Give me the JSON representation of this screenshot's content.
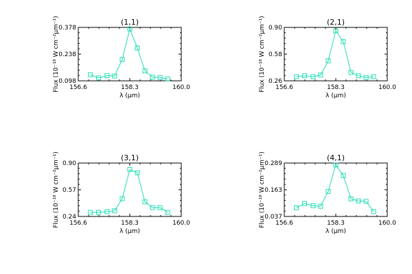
{
  "chart_data": [
    {
      "type": "line",
      "title": "(1,1)",
      "xlabel": "λ (μm)",
      "ylabel": "Flux (10⁻¹⁸ W cm⁻²μm⁻¹)",
      "xlim": [
        156.6,
        160.0
      ],
      "ylim": [
        0.098,
        0.378
      ],
      "xticks": [
        "156.6",
        "158.3",
        "160.0"
      ],
      "yticks": [
        "0.098",
        "0.238",
        "0.378"
      ],
      "x": [
        157.0,
        157.27,
        157.55,
        157.8,
        158.05,
        158.3,
        158.55,
        158.8,
        159.05,
        159.3,
        159.55
      ],
      "y": [
        0.13,
        0.113,
        0.125,
        0.123,
        0.21,
        0.37,
        0.27,
        0.15,
        0.117,
        0.115,
        0.108
      ],
      "color": "#1fdcb4"
    },
    {
      "type": "line",
      "title": "(2,1)",
      "xlabel": "λ (μm)",
      "ylabel": "Flux (10⁻¹⁸ W cm⁻²μm⁻¹)",
      "xlim": [
        156.6,
        160.0
      ],
      "ylim": [
        0.26,
        0.9
      ],
      "xticks": [
        "156.6",
        "158.3",
        "160.0"
      ],
      "yticks": [
        "0.26",
        "0.58",
        "0.90"
      ],
      "x": [
        157.0,
        157.27,
        157.55,
        157.8,
        158.05,
        158.3,
        158.55,
        158.8,
        159.05,
        159.3,
        159.55
      ],
      "y": [
        0.31,
        0.32,
        0.31,
        0.33,
        0.5,
        0.86,
        0.73,
        0.36,
        0.32,
        0.3,
        0.31
      ],
      "color": "#1fdcb4"
    },
    {
      "type": "line",
      "title": "(3,1)",
      "xlabel": "λ (μm)",
      "ylabel": "Flux (10⁻¹⁸ W cm⁻²μm⁻¹)",
      "xlim": [
        156.6,
        160.0
      ],
      "ylim": [
        0.24,
        0.9
      ],
      "xticks": [
        "156.6",
        "158.3",
        "160.0"
      ],
      "yticks": [
        "0.24",
        "0.57",
        "0.90"
      ],
      "x": [
        157.0,
        157.27,
        157.55,
        157.8,
        158.05,
        158.3,
        158.55,
        158.8,
        159.05,
        159.3,
        159.55
      ],
      "y": [
        0.29,
        0.29,
        0.3,
        0.31,
        0.46,
        0.82,
        0.78,
        0.42,
        0.35,
        0.35,
        0.29
      ],
      "color": "#1fdcb4"
    },
    {
      "type": "line",
      "title": "(4,1)",
      "xlabel": "λ (μm)",
      "ylabel": "Flux (10⁻¹⁸ W cm⁻²μm⁻¹)",
      "xlim": [
        156.6,
        160.0
      ],
      "ylim": [
        0.037,
        0.289
      ],
      "xticks": [
        "156.6",
        "158.3",
        "160.0"
      ],
      "yticks": [
        "0.037",
        "0.163",
        "0.289"
      ],
      "x": [
        157.0,
        157.27,
        157.55,
        157.8,
        158.05,
        158.3,
        158.55,
        158.8,
        159.05,
        159.3,
        159.55
      ],
      "y": [
        0.078,
        0.098,
        0.088,
        0.085,
        0.155,
        0.28,
        0.23,
        0.12,
        0.11,
        0.108,
        0.06
      ],
      "color": "#1fdcb4"
    }
  ]
}
